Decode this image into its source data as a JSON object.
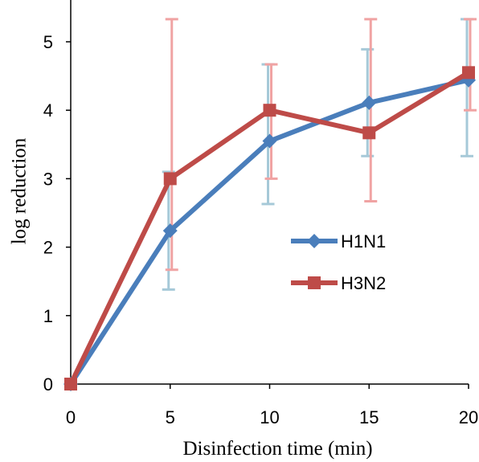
{
  "chart_data": {
    "type": "line",
    "title": "",
    "xlabel": "Disinfection time (min)",
    "ylabel": "log reduction",
    "x": [
      0,
      5,
      10,
      15,
      20
    ],
    "xlim": [
      0,
      20
    ],
    "ylim": [
      0,
      5.5
    ],
    "xticks": [
      "0",
      "5",
      "10",
      "15",
      "20"
    ],
    "yticks": [
      "0",
      "1",
      "2",
      "3",
      "4",
      "5"
    ],
    "grid": false,
    "legend_position": "center-right",
    "series": [
      {
        "name": "H1N1",
        "color": "#4a7ebb",
        "error_color": "#a6c9d8",
        "marker": "diamond",
        "values": [
          0,
          2.24,
          3.55,
          4.11,
          4.44
        ],
        "error_low": [
          null,
          1.38,
          2.63,
          3.33,
          3.33
        ],
        "error_high": [
          null,
          3.1,
          4.67,
          4.89,
          5.33
        ]
      },
      {
        "name": "H3N2",
        "color": "#be4b48",
        "error_color": "#f0a3a3",
        "marker": "square",
        "values": [
          0,
          3.0,
          4.0,
          3.67,
          4.55
        ],
        "error_low": [
          null,
          1.67,
          3.0,
          2.67,
          4.0
        ],
        "error_high": [
          null,
          5.33,
          4.67,
          5.33,
          5.33
        ]
      }
    ]
  }
}
